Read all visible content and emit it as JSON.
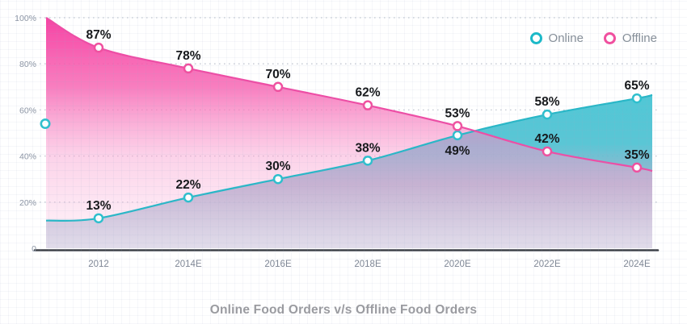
{
  "title": "Online Food Orders v/s Offline Food Orders",
  "legend": {
    "items": [
      {
        "label": "Online",
        "color": "#1cb9c8"
      },
      {
        "label": "Offline",
        "color": "#f0509f"
      }
    ]
  },
  "chart_data": {
    "type": "area",
    "title": "Online Food Orders v/s Offline Food Orders",
    "categories": [
      "2012",
      "2014E",
      "2016E",
      "2018E",
      "2020E",
      "2022E",
      "2024E"
    ],
    "series": [
      {
        "name": "Online",
        "line_color": "#29b7c7",
        "marker_ring_color": "#2ebfcd",
        "gradient_top": "#3fc9d6",
        "gradient_mid": "#52c3d3",
        "gradient_low": "#93a8c6",
        "gradient_bottom": "#ccd7e5",
        "values": [
          13,
          22,
          30,
          38,
          49,
          58,
          65
        ],
        "edge_start_value": 12,
        "edge_end_value": 66.5,
        "point_labels": [
          "13%",
          "22%",
          "30%",
          "38%",
          "49%",
          "58%",
          "65%"
        ]
      },
      {
        "name": "Offline",
        "line_color": "#ee4da5",
        "marker_ring_color": "#f0509f",
        "gradient_top": "#f63fa2",
        "gradient_mid": "#f767b4",
        "gradient_low": "#f99bce",
        "gradient_bottom": "#fbd7eb",
        "values": [
          87,
          78,
          70,
          62,
          53,
          42,
          35
        ],
        "edge_start_value": 100,
        "edge_end_value": 33.5,
        "point_labels": [
          "87%",
          "78%",
          "70%",
          "62%",
          "53%",
          "42%",
          "35%"
        ]
      }
    ],
    "yticks": [
      {
        "label": "100%",
        "value": 100
      },
      {
        "label": "80%",
        "value": 80
      },
      {
        "label": "60%",
        "value": 60
      },
      {
        "label": "40%",
        "value": 40
      },
      {
        "label": "20%",
        "value": 20
      },
      {
        "label": "0",
        "value": 0
      }
    ],
    "ylim": [
      0,
      100
    ],
    "grid": "dotted-horizontal",
    "gridline_color": "#c4cad3",
    "axis_line_color": "#3b3f46",
    "legend_position": "top-right",
    "unlabeled_marker": {
      "series": "Online",
      "value": 54,
      "position": "left-edge"
    }
  }
}
